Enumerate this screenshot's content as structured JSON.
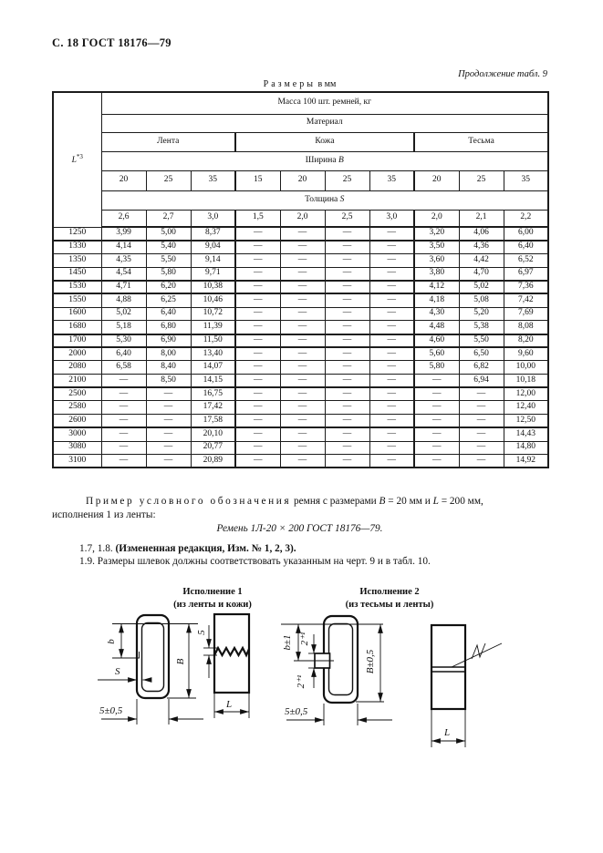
{
  "page": {
    "header_left": "С. 18 ГОСТ 18176—79",
    "continuation_note": "Продолжение табл. 9",
    "units_word": "Размеры",
    "units_rest": " в мм"
  },
  "table": {
    "l_symbol": "L",
    "l_superscript": "*3",
    "mass_header": "Масса 100 шт. ремней, кг",
    "material_header": "Материал",
    "material_groups": [
      "Лента",
      "Кожа",
      "Тесьма"
    ],
    "width_label": "Ширина ",
    "width_symbol": "B",
    "widths": [
      "20",
      "25",
      "35",
      "15",
      "20",
      "25",
      "35",
      "20",
      "25",
      "35"
    ],
    "thickness_label": "Толщина ",
    "thickness_symbol": "S",
    "thicknesses": [
      "2,6",
      "2,7",
      "3,0",
      "1,5",
      "2,0",
      "2,5",
      "3,0",
      "2,0",
      "2,1",
      "2,2"
    ],
    "rows": [
      {
        "l": "1250",
        "values": [
          "3,99",
          "5,00",
          "8,37",
          "—",
          "—",
          "—",
          "—",
          "3,20",
          "4,06",
          "6,00"
        ],
        "group_end": true
      },
      {
        "l": "1330",
        "values": [
          "4,14",
          "5,40",
          "9,04",
          "—",
          "—",
          "—",
          "—",
          "3,50",
          "4,36",
          "6,40"
        ],
        "group_end": false
      },
      {
        "l": "1350",
        "values": [
          "4,35",
          "5,50",
          "9,14",
          "—",
          "—",
          "—",
          "—",
          "3,60",
          "4,42",
          "6,52"
        ],
        "group_end": false
      },
      {
        "l": "1450",
        "values": [
          "4,54",
          "5,80",
          "9,71",
          "—",
          "—",
          "—",
          "—",
          "3,80",
          "4,70",
          "6,97"
        ],
        "group_end": true
      },
      {
        "l": "1530",
        "values": [
          "4,71",
          "6,20",
          "10,38",
          "—",
          "—",
          "—",
          "—",
          "4,12",
          "5,02",
          "7,36"
        ],
        "group_end": true
      },
      {
        "l": "1550",
        "values": [
          "4,88",
          "6,25",
          "10,46",
          "—",
          "—",
          "—",
          "—",
          "4,18",
          "5,08",
          "7,42"
        ],
        "group_end": false
      },
      {
        "l": "1600",
        "values": [
          "5,02",
          "6,40",
          "10,72",
          "—",
          "—",
          "—",
          "—",
          "4,30",
          "5,20",
          "7,69"
        ],
        "group_end": false
      },
      {
        "l": "1680",
        "values": [
          "5,18",
          "6,80",
          "11,39",
          "—",
          "—",
          "—",
          "—",
          "4,48",
          "5,38",
          "8,08"
        ],
        "group_end": true
      },
      {
        "l": "1700",
        "values": [
          "5,30",
          "6,90",
          "11,50",
          "—",
          "—",
          "—",
          "—",
          "4,60",
          "5,50",
          "8,20"
        ],
        "group_end": true
      },
      {
        "l": "2000",
        "values": [
          "6,40",
          "8,00",
          "13,40",
          "—",
          "—",
          "—",
          "—",
          "5,60",
          "6,50",
          "9,60"
        ],
        "group_end": false
      },
      {
        "l": "2080",
        "values": [
          "6,58",
          "8,40",
          "14,07",
          "—",
          "—",
          "—",
          "—",
          "5,80",
          "6,82",
          "10,00"
        ],
        "group_end": false
      },
      {
        "l": "2100",
        "values": [
          "—",
          "8,50",
          "14,15",
          "—",
          "—",
          "—",
          "—",
          "—",
          "6,94",
          "10,18"
        ],
        "group_end": true
      },
      {
        "l": "2500",
        "values": [
          "—",
          "—",
          "16,75",
          "—",
          "—",
          "—",
          "—",
          "—",
          "—",
          "12,00"
        ],
        "group_end": false
      },
      {
        "l": "2580",
        "values": [
          "—",
          "—",
          "17,42",
          "—",
          "—",
          "—",
          "—",
          "—",
          "—",
          "12,40"
        ],
        "group_end": false
      },
      {
        "l": "2600",
        "values": [
          "—",
          "—",
          "17,58",
          "—",
          "—",
          "—",
          "—",
          "—",
          "—",
          "12,50"
        ],
        "group_end": true
      },
      {
        "l": "3000",
        "values": [
          "—",
          "—",
          "20,10",
          "—",
          "—",
          "—",
          "—",
          "—",
          "—",
          "14,43"
        ],
        "group_end": false
      },
      {
        "l": "3080",
        "values": [
          "—",
          "—",
          "20,77",
          "—",
          "—",
          "—",
          "—",
          "—",
          "—",
          "14,80"
        ],
        "group_end": false
      },
      {
        "l": "3100",
        "values": [
          "—",
          "—",
          "20,89",
          "—",
          "—",
          "—",
          "—",
          "—",
          "—",
          "14,92"
        ],
        "group_end": false
      }
    ]
  },
  "example": {
    "lead": "Пример условного обозначения",
    "t1": " ремня с размерами ",
    "sym_b": "B",
    "t2": " = 20 мм и ",
    "sym_l": "L",
    "t3": " = 200 мм,",
    "line2": "исполнения 1 из ленты:",
    "designation": "Ремень 1Л-20 × 200 ГОСТ 18176—79."
  },
  "clauses": {
    "c17_prefix": "1.7, 1.8. ",
    "c17_bold": "(Измененная редакция, Изм. № 1, 2, 3).",
    "c19": "1.9. Размеры шлевок должны соответствовать указанным на черт. 9 и в табл. 10."
  },
  "figures": {
    "fig1": {
      "title": "Исполнение 1",
      "subtitle": "(из ленты и кожи)",
      "dim_b": "b",
      "dim_s": "S",
      "dim_B": "B",
      "dim_width": "5±0,5",
      "dim_seam": "5",
      "dim_L": "L"
    },
    "fig2": {
      "title": "Исполнение 2",
      "subtitle": "(из тесьмы и ленты)",
      "dim_b": "b±1",
      "dim_two_upper": "2⁺¹",
      "dim_two_lower": "2⁺¹",
      "dim_B": "B±0,5",
      "dim_width": "5±0,5",
      "dim_L": "L"
    }
  }
}
